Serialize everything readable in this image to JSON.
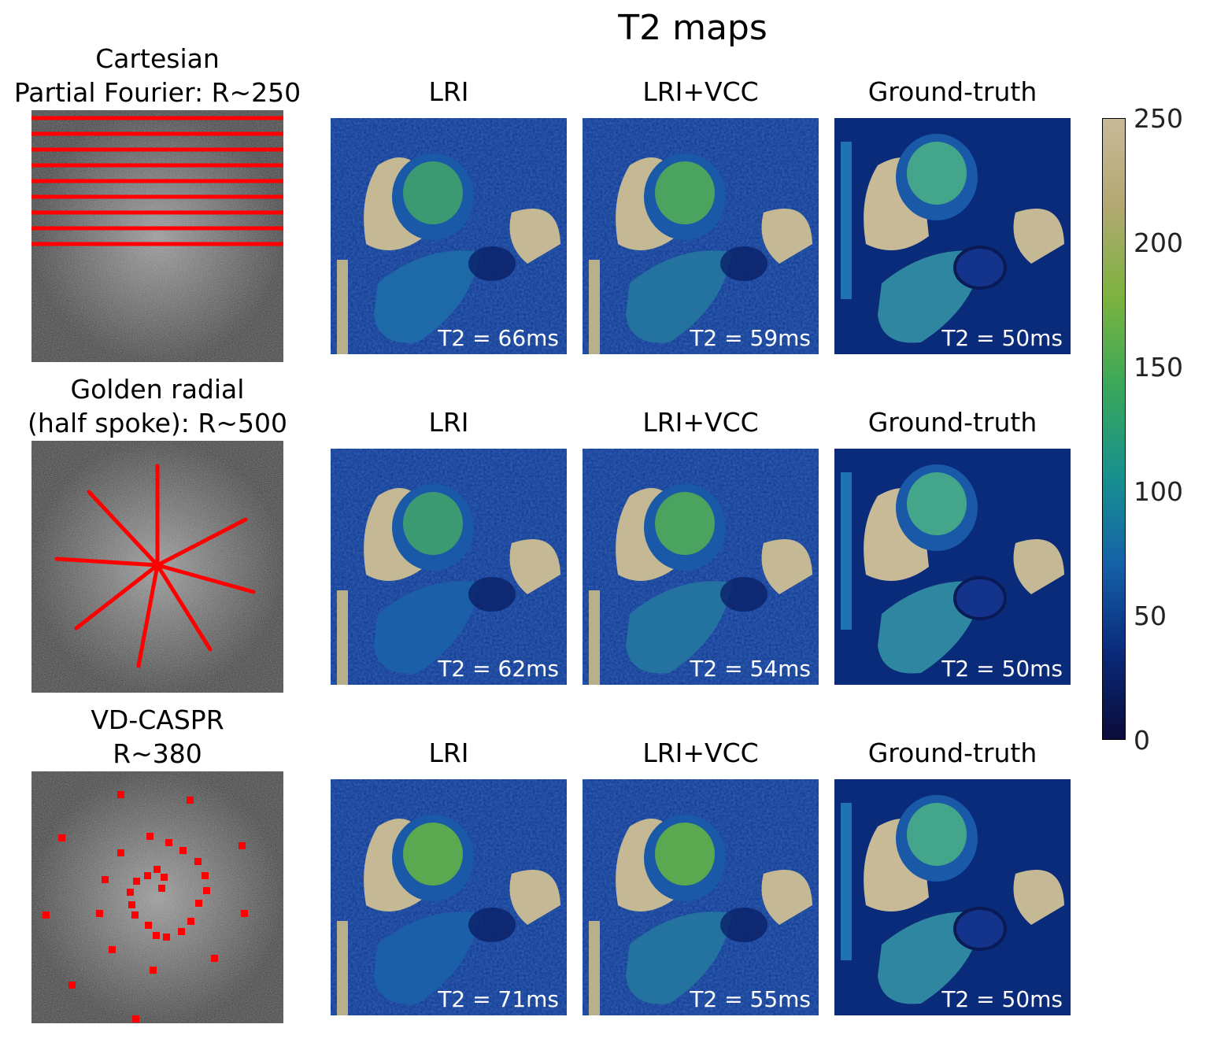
{
  "title": "T2 maps",
  "column_headers": [
    "LRI",
    "LRI+VCC",
    "Ground-truth"
  ],
  "rows": [
    {
      "label_lines": [
        "Cartesian",
        "Partial Fourier: R~250"
      ],
      "sampling": "cartesian",
      "t2_values": [
        "T2 = 66ms",
        "T2 = 59ms",
        "T2 = 50ms"
      ]
    },
    {
      "label_lines": [
        "Golden radial",
        "(half spoke): R~500"
      ],
      "sampling": "radial",
      "t2_values": [
        "T2 = 62ms",
        "T2 = 54ms",
        "T2 = 50ms"
      ]
    },
    {
      "label_lines": [
        "VD-CASPR",
        "R~380"
      ],
      "sampling": "vd-caspr",
      "t2_values": [
        "T2 = 71ms",
        "T2 = 55ms",
        "T2 = 50ms"
      ]
    }
  ],
  "colorbar": {
    "ticks": [
      "250",
      "200",
      "150",
      "100",
      "50",
      "0"
    ],
    "min": 0,
    "max": 250
  },
  "colors": {
    "sampling_marks": "#ff0000",
    "colormap": [
      "#0b0c3a",
      "#0a2a7a",
      "#1560a8",
      "#16908f",
      "#3aa85a",
      "#7bb33e",
      "#b3a872",
      "#c9b998"
    ]
  }
}
